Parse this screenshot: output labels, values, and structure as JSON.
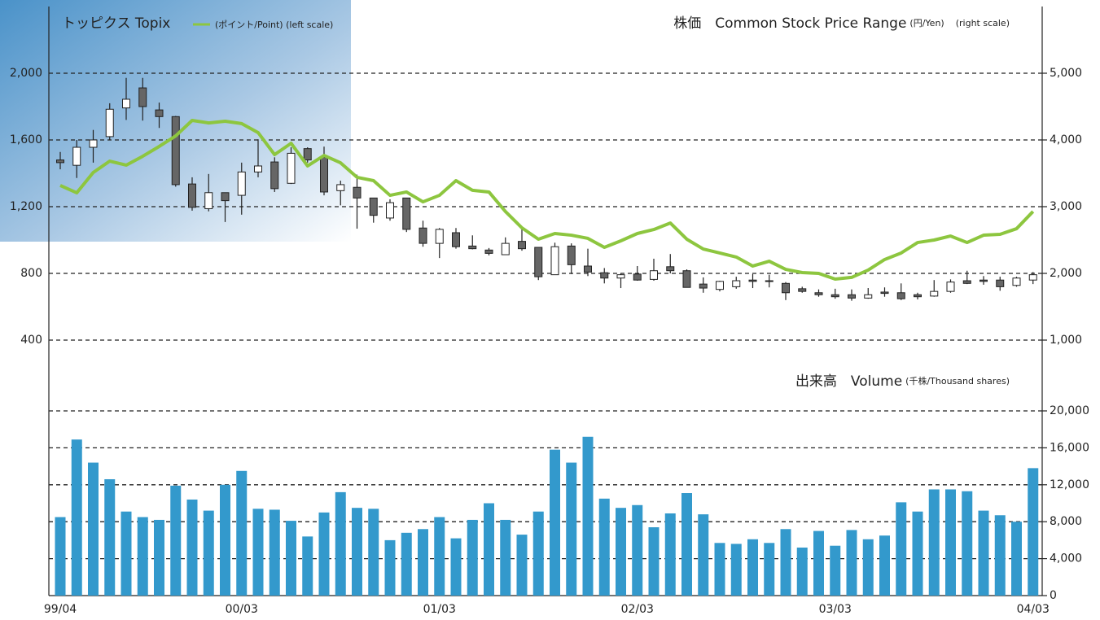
{
  "chart_data": [
    {
      "type": "candlestick",
      "title": "株価　Common Stock Price Range",
      "title_unit": "(円/Yen)",
      "title_note": "(right scale)",
      "open": [
        3700,
        3620,
        3890,
        4050,
        4480,
        4780,
        4450,
        4350,
        3340,
        2970,
        3210,
        3170,
        3520,
        3670,
        3350,
        3870,
        3740,
        3240,
        3290,
        3130,
        2830,
        3130,
        2680,
        2450,
        2610,
        2410,
        2350,
        2280,
        2480,
        2390,
        1980,
        2410,
        2110,
        2010,
        1930,
        1990,
        1910,
        2100,
        2040,
        1840,
        1760,
        1800,
        1900,
        1890,
        1850,
        1770,
        1710,
        1680,
        1680,
        1630,
        1720,
        1710,
        1680,
        1660,
        1730,
        1890,
        1900,
        1900,
        1820,
        1900
      ],
      "high": [
        3820,
        4000,
        4150,
        4550,
        4930,
        4930,
        4560,
        4360,
        3440,
        3490,
        3210,
        3660,
        4010,
        3740,
        3890,
        3890,
        3900,
        3390,
        3480,
        3130,
        3110,
        3130,
        2790,
        2680,
        2680,
        2570,
        2380,
        2540,
        2660,
        2390,
        2460,
        2450,
        2370,
        2080,
        2000,
        2110,
        2220,
        2290,
        2060,
        1940,
        1890,
        1950,
        1990,
        1980,
        1870,
        1800,
        1760,
        1770,
        1760,
        1780,
        1790,
        1850,
        1710,
        1900,
        1910,
        2040,
        1960,
        1950,
        1950,
        2020
      ],
      "low": [
        3560,
        3430,
        3660,
        4000,
        4300,
        4290,
        4180,
        3300,
        2940,
        2930,
        2770,
        2880,
        3440,
        3220,
        3340,
        3660,
        3170,
        3020,
        2670,
        2760,
        2790,
        2620,
        2400,
        2230,
        2370,
        2360,
        2270,
        2280,
        2340,
        1900,
        1980,
        1990,
        1960,
        1850,
        1780,
        1890,
        1890,
        2000,
        1790,
        1710,
        1730,
        1770,
        1780,
        1790,
        1600,
        1710,
        1650,
        1620,
        1590,
        1620,
        1650,
        1600,
        1610,
        1650,
        1710,
        1840,
        1830,
        1740,
        1800,
        1840
      ],
      "close": [
        3660,
        3890,
        4000,
        4460,
        4610,
        4500,
        4350,
        3330,
        2990,
        3210,
        3090,
        3520,
        3610,
        3270,
        3800,
        3700,
        3220,
        3330,
        3130,
        2870,
        3060,
        2660,
        2450,
        2660,
        2400,
        2370,
        2300,
        2450,
        2370,
        1950,
        2400,
        2130,
        2020,
        1930,
        1980,
        1900,
        2040,
        2040,
        1790,
        1780,
        1880,
        1890,
        1880,
        1880,
        1710,
        1730,
        1680,
        1650,
        1630,
        1680,
        1700,
        1620,
        1650,
        1730,
        1870,
        1850,
        1880,
        1800,
        1930,
        1980
      ],
      "up_color": "#ffffff",
      "down_color": "#666666",
      "series": [
        {
          "name": "トッピクス Topix",
          "unit": "(ポイント/Point) (left scale)",
          "color": "#8dc63f",
          "axis": "y",
          "values": [
            1327,
            1283,
            1405,
            1473,
            1449,
            1502,
            1561,
            1624,
            1717,
            1702,
            1712,
            1698,
            1644,
            1512,
            1580,
            1444,
            1507,
            1463,
            1376,
            1356,
            1268,
            1288,
            1229,
            1268,
            1356,
            1298,
            1288,
            1171,
            1073,
            1005,
            1039,
            1029,
            1010,
            956,
            995,
            1039,
            1063,
            1102,
            1005,
            946,
            922,
            898,
            844,
            873,
            824,
            805,
            800,
            766,
            776,
            820,
            883,
            922,
            985,
            1000,
            1024,
            985,
            1029,
            1034,
            1068,
            1171
          ]
        }
      ],
      "ylim": [
        0,
        2400
      ],
      "yticks": [
        400,
        800,
        {
          "value": 1200,
          "label": "1,200"
        },
        {
          "value": 1600,
          "label": "1,600"
        },
        {
          "value": 2000,
          "label": "2,000"
        }
      ],
      "y2lim": [
        0,
        6000
      ],
      "y2ticks": [
        {
          "value": 1000,
          "label": "1,000"
        },
        {
          "value": 2000,
          "label": "2,000"
        },
        {
          "value": 3000,
          "label": "3,000"
        },
        {
          "value": 4000,
          "label": "4,000"
        },
        {
          "value": 5000,
          "label": "5,000"
        }
      ],
      "grid": true
    },
    {
      "type": "bar",
      "title": "出来高　Volume",
      "title_unit": "(千株/Thousand shares)",
      "categories": [
        "99/04",
        null,
        null,
        null,
        null,
        null,
        null,
        null,
        null,
        null,
        null,
        "00/03",
        null,
        null,
        null,
        null,
        null,
        null,
        null,
        null,
        null,
        null,
        null,
        "01/03",
        null,
        null,
        null,
        null,
        null,
        null,
        null,
        null,
        null,
        null,
        null,
        "02/03",
        null,
        null,
        null,
        null,
        null,
        null,
        null,
        null,
        null,
        null,
        null,
        "03/03",
        null,
        null,
        null,
        null,
        null,
        null,
        null,
        null,
        null,
        null,
        null,
        "04/03"
      ],
      "values": [
        8500,
        16900,
        14400,
        12600,
        9100,
        8500,
        8200,
        11900,
        10400,
        9200,
        12000,
        13500,
        9400,
        9300,
        8100,
        6400,
        9000,
        11200,
        9500,
        9400,
        6000,
        6800,
        7200,
        8500,
        6200,
        8200,
        10000,
        8200,
        6600,
        9100,
        15800,
        14400,
        17200,
        10500,
        9500,
        9800,
        7400,
        8900,
        11100,
        8800,
        5700,
        5600,
        6100,
        5700,
        7200,
        5200,
        7000,
        5400,
        7100,
        6100,
        6500,
        10100,
        9100,
        11500,
        11500,
        11300,
        9200,
        8700,
        8000,
        13800
      ],
      "color": "#3399cc",
      "ylim": [
        0,
        20000
      ],
      "yticks": [
        0,
        {
          "value": 4000,
          "label": "4,000"
        },
        {
          "value": 8000,
          "label": "8,000"
        },
        {
          "value": 12000,
          "label": "12,000"
        },
        {
          "value": 16000,
          "label": "16,000"
        },
        {
          "value": 20000,
          "label": "20,000"
        }
      ],
      "grid": true
    }
  ]
}
